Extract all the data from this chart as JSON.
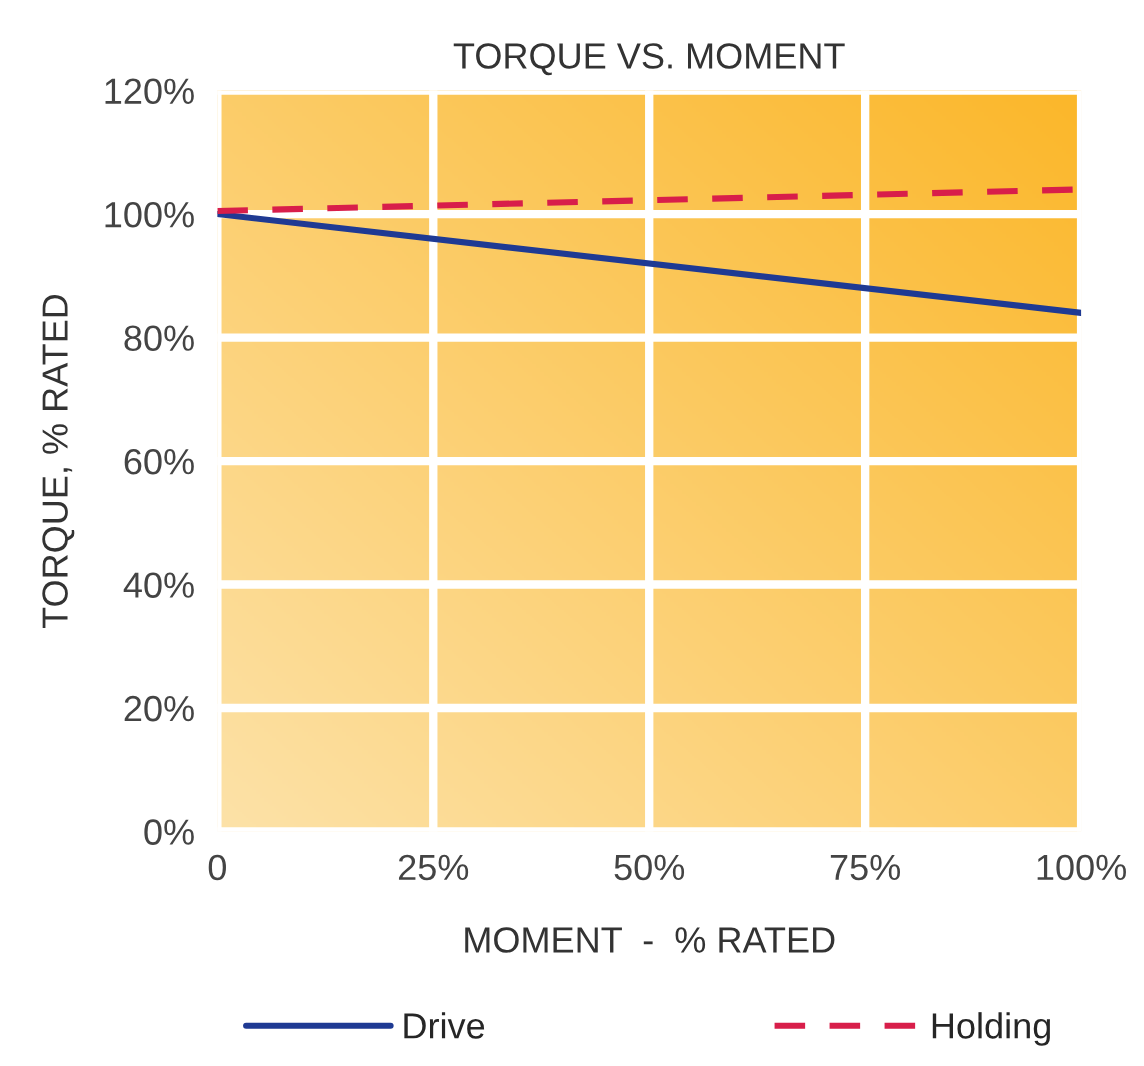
{
  "chart_data": {
    "type": "line",
    "title": "TORQUE VS. MOMENT",
    "xlabel": "MOMENT  -  % RATED",
    "ylabel": "TORQUE, % RATED",
    "x": [
      0,
      100
    ],
    "series": [
      {
        "name": "Drive",
        "color": "#1f3a93",
        "values": [
          100,
          84
        ],
        "line_style": "solid"
      },
      {
        "name": "Holding",
        "color": "#d81e4a",
        "values": [
          100.5,
          104
        ],
        "line_style": "dashed"
      }
    ],
    "xlim": [
      0,
      100
    ],
    "xticks": [
      {
        "value": 0,
        "label": "0"
      },
      {
        "value": 25,
        "label": "25%"
      },
      {
        "value": 50,
        "label": "50%"
      },
      {
        "value": 75,
        "label": "75%"
      },
      {
        "value": 100,
        "label": "100%"
      }
    ],
    "ylim": [
      0,
      120
    ],
    "yticks": [
      {
        "value": 0,
        "label": "0%"
      },
      {
        "value": 20,
        "label": "20%"
      },
      {
        "value": 40,
        "label": "40%"
      },
      {
        "value": 60,
        "label": "60%"
      },
      {
        "value": 80,
        "label": "80%"
      },
      {
        "value": 100,
        "label": "100%"
      },
      {
        "value": 120,
        "label": "120%"
      }
    ],
    "grid": true,
    "legend": "bottom",
    "marker": "none"
  }
}
